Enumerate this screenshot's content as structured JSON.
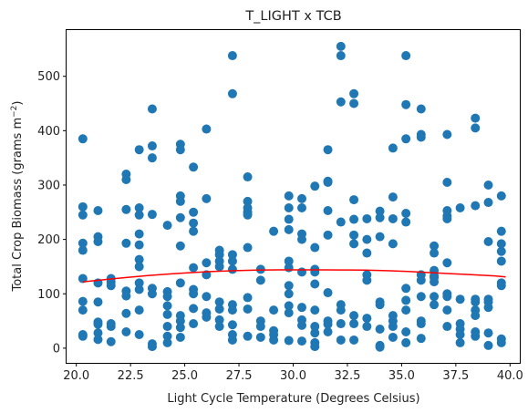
{
  "chart_data": {
    "type": "scatter",
    "title": "T_LIGHT x TCB",
    "xlabel": "Light Cycle Temperature (Degrees Celsius)",
    "ylabel_prefix": "Total Crop Biomass (grams m",
    "ylabel_exp": "−2",
    "ylabel_suffix": ")",
    "xlim": [
      19.55,
      40.45
    ],
    "ylim": [
      -27,
      585
    ],
    "xticks": [
      20.0,
      22.5,
      25.0,
      27.5,
      30.0,
      32.5,
      35.0,
      37.5,
      40.0
    ],
    "xtick_labels": [
      "20.0",
      "22.5",
      "25.0",
      "27.5",
      "30.0",
      "32.5",
      "35.0",
      "37.5",
      "40.0"
    ],
    "yticks": [
      0,
      100,
      200,
      300,
      400,
      500
    ],
    "ytick_labels": [
      "0",
      "100",
      "200",
      "300",
      "400",
      "500"
    ],
    "grid": false,
    "legend": "none",
    "series": [
      {
        "kind": "points",
        "color": "#1f77b4",
        "points": [
          [
            20.3,
            385
          ],
          [
            20.3,
            260
          ],
          [
            20.3,
            245
          ],
          [
            20.3,
            193
          ],
          [
            20.3,
            180
          ],
          [
            20.3,
            128
          ],
          [
            20.3,
            86
          ],
          [
            20.3,
            70
          ],
          [
            20.3,
            25
          ],
          [
            20.3,
            22
          ],
          [
            21.0,
            253
          ],
          [
            21.0,
            205
          ],
          [
            21.0,
            196
          ],
          [
            21.0,
            120
          ],
          [
            21.0,
            85
          ],
          [
            21.0,
            48
          ],
          [
            21.0,
            44
          ],
          [
            21.0,
            28
          ],
          [
            21.0,
            16
          ],
          [
            21.6,
            128
          ],
          [
            21.6,
            122
          ],
          [
            21.6,
            115
          ],
          [
            21.6,
            45
          ],
          [
            21.6,
            40
          ],
          [
            21.6,
            12
          ],
          [
            22.3,
            320
          ],
          [
            22.3,
            310
          ],
          [
            22.3,
            255
          ],
          [
            22.3,
            193
          ],
          [
            22.3,
            105
          ],
          [
            22.3,
            96
          ],
          [
            22.3,
            64
          ],
          [
            22.3,
            30
          ],
          [
            22.9,
            365
          ],
          [
            22.9,
            258
          ],
          [
            22.9,
            245
          ],
          [
            22.9,
            210
          ],
          [
            22.9,
            190
          ],
          [
            22.9,
            163
          ],
          [
            22.9,
            150
          ],
          [
            22.9,
            120
          ],
          [
            22.9,
            108
          ],
          [
            22.9,
            70
          ],
          [
            22.9,
            25
          ],
          [
            23.5,
            440
          ],
          [
            23.5,
            372
          ],
          [
            23.5,
            350
          ],
          [
            23.5,
            246
          ],
          [
            23.5,
            110
          ],
          [
            23.5,
            100
          ],
          [
            23.5,
            8
          ],
          [
            23.5,
            3
          ],
          [
            24.2,
            226
          ],
          [
            24.2,
            104
          ],
          [
            24.2,
            95
          ],
          [
            24.2,
            78
          ],
          [
            24.2,
            62
          ],
          [
            24.2,
            40
          ],
          [
            24.2,
            22
          ],
          [
            24.2,
            10
          ],
          [
            24.8,
            375
          ],
          [
            24.8,
            365
          ],
          [
            24.8,
            280
          ],
          [
            24.8,
            270
          ],
          [
            24.8,
            240
          ],
          [
            24.8,
            188
          ],
          [
            24.8,
            120
          ],
          [
            24.8,
            60
          ],
          [
            24.8,
            50
          ],
          [
            24.8,
            38
          ],
          [
            24.8,
            20
          ],
          [
            25.4,
            333
          ],
          [
            25.4,
            250
          ],
          [
            25.4,
            230
          ],
          [
            25.4,
            215
          ],
          [
            25.4,
            148
          ],
          [
            25.4,
            108
          ],
          [
            25.4,
            100
          ],
          [
            25.4,
            73
          ],
          [
            25.4,
            45
          ],
          [
            26.0,
            403
          ],
          [
            26.0,
            275
          ],
          [
            26.0,
            157
          ],
          [
            26.0,
            135
          ],
          [
            26.0,
            95
          ],
          [
            26.0,
            65
          ],
          [
            26.0,
            57
          ],
          [
            26.6,
            180
          ],
          [
            26.6,
            172
          ],
          [
            26.6,
            160
          ],
          [
            26.6,
            150
          ],
          [
            26.6,
            85
          ],
          [
            26.6,
            72
          ],
          [
            26.6,
            52
          ],
          [
            26.6,
            40
          ],
          [
            27.2,
            538
          ],
          [
            27.2,
            468
          ],
          [
            27.2,
            172
          ],
          [
            27.2,
            160
          ],
          [
            27.2,
            145
          ],
          [
            27.2,
            80
          ],
          [
            27.2,
            70
          ],
          [
            27.2,
            43
          ],
          [
            27.2,
            25
          ],
          [
            27.2,
            15
          ],
          [
            27.9,
            315
          ],
          [
            27.9,
            270
          ],
          [
            27.9,
            258
          ],
          [
            27.9,
            250
          ],
          [
            27.9,
            245
          ],
          [
            27.9,
            185
          ],
          [
            27.9,
            93
          ],
          [
            27.9,
            72
          ],
          [
            27.9,
            22
          ],
          [
            28.5,
            145
          ],
          [
            28.5,
            125
          ],
          [
            28.5,
            50
          ],
          [
            28.5,
            40
          ],
          [
            28.5,
            20
          ],
          [
            29.1,
            215
          ],
          [
            29.1,
            70
          ],
          [
            29.1,
            32
          ],
          [
            29.1,
            25
          ],
          [
            29.1,
            15
          ],
          [
            29.8,
            280
          ],
          [
            29.8,
            258
          ],
          [
            29.8,
            237
          ],
          [
            29.8,
            218
          ],
          [
            29.8,
            160
          ],
          [
            29.8,
            148
          ],
          [
            29.8,
            115
          ],
          [
            29.8,
            100
          ],
          [
            29.8,
            78
          ],
          [
            29.8,
            65
          ],
          [
            29.8,
            14
          ],
          [
            30.4,
            275
          ],
          [
            30.4,
            258
          ],
          [
            30.4,
            210
          ],
          [
            30.4,
            200
          ],
          [
            30.4,
            140
          ],
          [
            30.4,
            75
          ],
          [
            30.4,
            52
          ],
          [
            30.4,
            42
          ],
          [
            30.4,
            13
          ],
          [
            31.0,
            298
          ],
          [
            31.0,
            185
          ],
          [
            31.0,
            145
          ],
          [
            31.0,
            140
          ],
          [
            31.0,
            118
          ],
          [
            31.0,
            70
          ],
          [
            31.0,
            40
          ],
          [
            31.0,
            28
          ],
          [
            31.0,
            10
          ],
          [
            31.0,
            3
          ],
          [
            31.6,
            365
          ],
          [
            31.6,
            307
          ],
          [
            31.6,
            305
          ],
          [
            31.6,
            253
          ],
          [
            31.6,
            208
          ],
          [
            31.6,
            102
          ],
          [
            31.6,
            50
          ],
          [
            31.6,
            44
          ],
          [
            31.6,
            30
          ],
          [
            32.2,
            555
          ],
          [
            32.2,
            538
          ],
          [
            32.2,
            453
          ],
          [
            32.2,
            232
          ],
          [
            32.2,
            80
          ],
          [
            32.2,
            70
          ],
          [
            32.2,
            45
          ],
          [
            32.2,
            15
          ],
          [
            32.8,
            468
          ],
          [
            32.8,
            450
          ],
          [
            32.8,
            273
          ],
          [
            32.8,
            237
          ],
          [
            32.8,
            208
          ],
          [
            32.8,
            192
          ],
          [
            32.8,
            60
          ],
          [
            32.8,
            45
          ],
          [
            32.8,
            15
          ],
          [
            33.4,
            238
          ],
          [
            33.4,
            200
          ],
          [
            33.4,
            175
          ],
          [
            33.4,
            135
          ],
          [
            33.4,
            125
          ],
          [
            33.4,
            55
          ],
          [
            33.4,
            40
          ],
          [
            34.0,
            252
          ],
          [
            34.0,
            240
          ],
          [
            34.0,
            205
          ],
          [
            34.0,
            85
          ],
          [
            34.0,
            80
          ],
          [
            34.0,
            35
          ],
          [
            34.0,
            5
          ],
          [
            34.0,
            2
          ],
          [
            34.6,
            368
          ],
          [
            34.6,
            278
          ],
          [
            34.6,
            238
          ],
          [
            34.6,
            192
          ],
          [
            34.6,
            60
          ],
          [
            34.6,
            50
          ],
          [
            34.6,
            40
          ],
          [
            34.6,
            20
          ],
          [
            35.2,
            538
          ],
          [
            35.2,
            448
          ],
          [
            35.2,
            385
          ],
          [
            35.2,
            248
          ],
          [
            35.2,
            232
          ],
          [
            35.2,
            110
          ],
          [
            35.2,
            88
          ],
          [
            35.2,
            70
          ],
          [
            35.2,
            30
          ],
          [
            35.2,
            10
          ],
          [
            35.9,
            440
          ],
          [
            35.9,
            393
          ],
          [
            35.9,
            388
          ],
          [
            35.9,
            135
          ],
          [
            35.9,
            125
          ],
          [
            35.9,
            95
          ],
          [
            35.9,
            50
          ],
          [
            35.9,
            45
          ],
          [
            35.9,
            18
          ],
          [
            36.5,
            188
          ],
          [
            36.5,
            175
          ],
          [
            36.5,
            143
          ],
          [
            36.5,
            133
          ],
          [
            36.5,
            130
          ],
          [
            36.5,
            122
          ],
          [
            36.5,
            95
          ],
          [
            36.5,
            80
          ],
          [
            37.1,
            393
          ],
          [
            37.1,
            305
          ],
          [
            37.1,
            253
          ],
          [
            37.1,
            243
          ],
          [
            37.1,
            238
          ],
          [
            37.1,
            157
          ],
          [
            37.1,
            100
          ],
          [
            37.1,
            95
          ],
          [
            37.1,
            70
          ],
          [
            37.1,
            40
          ],
          [
            37.7,
            258
          ],
          [
            37.7,
            90
          ],
          [
            37.7,
            45
          ],
          [
            37.7,
            35
          ],
          [
            37.7,
            25
          ],
          [
            37.7,
            10
          ],
          [
            38.4,
            423
          ],
          [
            38.4,
            405
          ],
          [
            38.4,
            262
          ],
          [
            38.4,
            90
          ],
          [
            38.4,
            85
          ],
          [
            38.4,
            70
          ],
          [
            38.4,
            60
          ],
          [
            38.4,
            30
          ],
          [
            38.4,
            22
          ],
          [
            39.0,
            300
          ],
          [
            39.0,
            268
          ],
          [
            39.0,
            196
          ],
          [
            39.0,
            90
          ],
          [
            39.0,
            85
          ],
          [
            39.0,
            75
          ],
          [
            39.0,
            28
          ],
          [
            39.0,
            5
          ],
          [
            39.6,
            280
          ],
          [
            39.6,
            215
          ],
          [
            39.6,
            192
          ],
          [
            39.6,
            178
          ],
          [
            39.6,
            160
          ],
          [
            39.6,
            120
          ],
          [
            39.6,
            115
          ],
          [
            39.6,
            17
          ],
          [
            39.6,
            10
          ]
        ]
      },
      {
        "kind": "line",
        "color": "#ff0000",
        "points": [
          [
            20.3,
            122
          ],
          [
            21.3,
            126
          ],
          [
            22.3,
            130
          ],
          [
            23.3,
            133.5
          ],
          [
            24.3,
            136.5
          ],
          [
            25.3,
            139
          ],
          [
            26.3,
            141
          ],
          [
            27.3,
            142.5
          ],
          [
            28.3,
            143.5
          ],
          [
            29.3,
            144
          ],
          [
            30.3,
            144
          ],
          [
            31.3,
            144
          ],
          [
            32.3,
            143.8
          ],
          [
            33.3,
            143.5
          ],
          [
            34.3,
            142.5
          ],
          [
            35.3,
            141
          ],
          [
            36.3,
            139
          ],
          [
            37.3,
            137
          ],
          [
            38.3,
            135
          ],
          [
            39.3,
            133
          ],
          [
            39.8,
            131
          ]
        ]
      }
    ]
  }
}
